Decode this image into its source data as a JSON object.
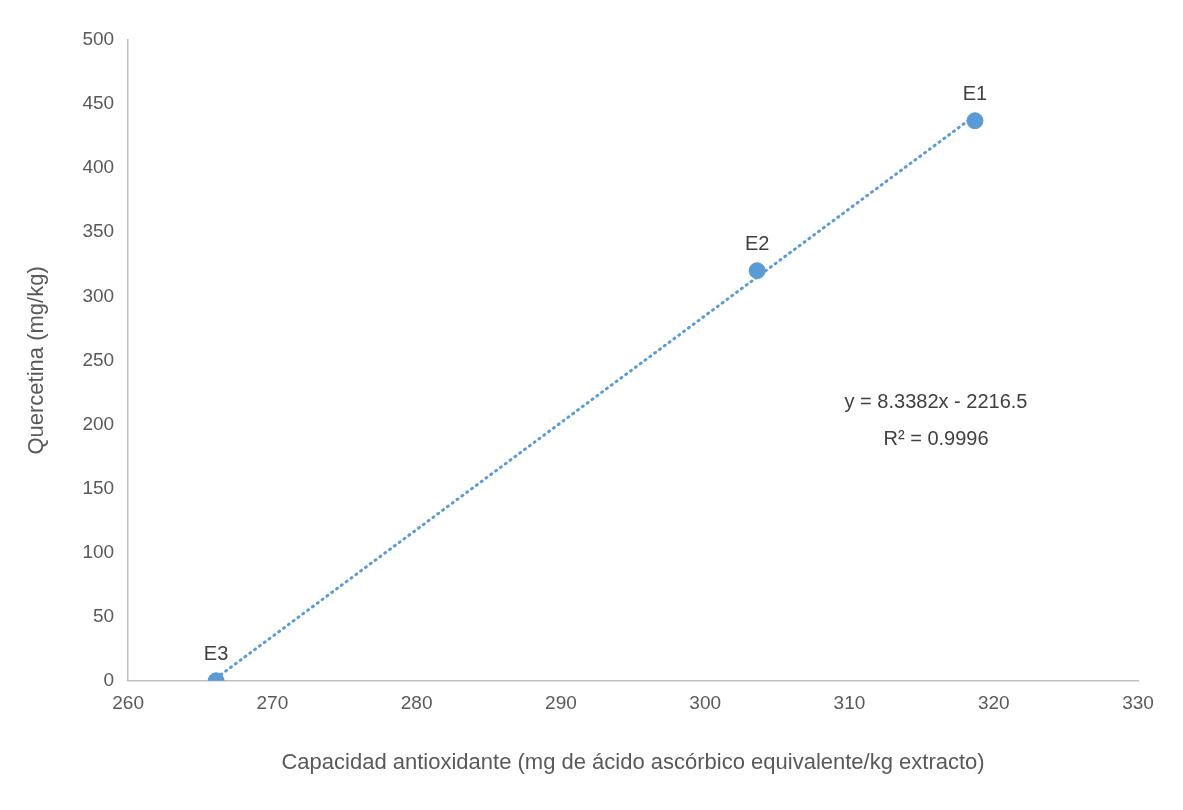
{
  "chart_data": {
    "type": "scatter",
    "xlabel": "Capacidad antioxidante (mg de ácido ascórbico equivalente/kg extracto)",
    "ylabel": "Quercetina (mg/kg)",
    "xlim": [
      260,
      330
    ],
    "xticks": [
      260,
      270,
      280,
      290,
      300,
      310,
      320,
      330
    ],
    "ylim": [
      0,
      500
    ],
    "yticks": [
      0,
      50,
      100,
      150,
      200,
      250,
      300,
      350,
      400,
      450,
      500
    ],
    "grid": false,
    "legend": false,
    "series": [
      {
        "marker": "circle",
        "color": "#5b9bd5",
        "x": [
          318.7,
          303.6,
          266.1
        ],
        "values": [
          437,
          320,
          0
        ],
        "value_labels": [
          "E1",
          "E2",
          "E3"
        ]
      },
      {
        "type": "line",
        "marker": "none",
        "color": "#5b9bd5",
        "line_style": "dotted",
        "x": [
          266.1,
          318.7
        ],
        "values": [
          2,
          441
        ]
      }
    ],
    "annotations": [
      "y = 8.3382x - 2216.5",
      "R² = 0.9996"
    ]
  }
}
